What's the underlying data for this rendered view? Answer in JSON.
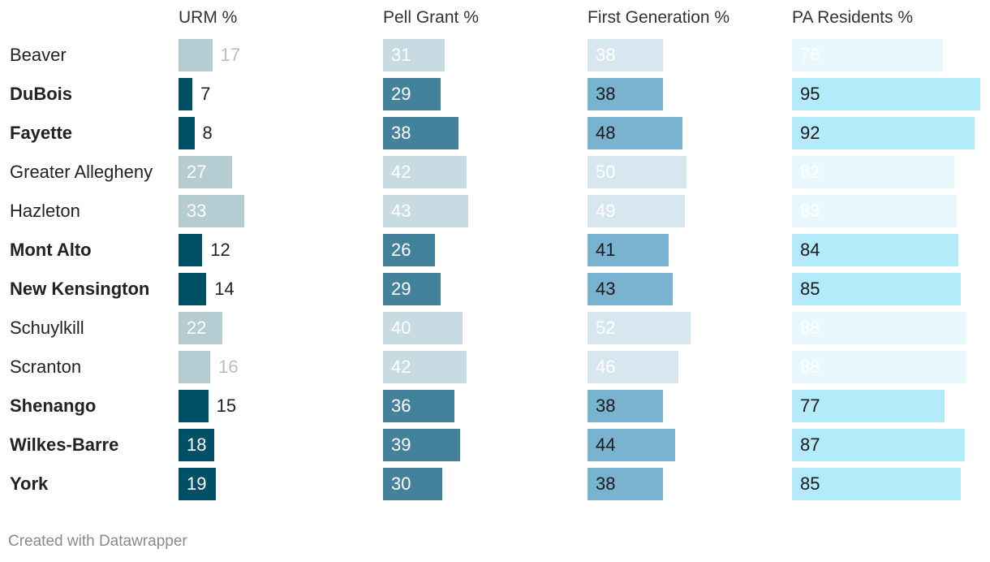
{
  "chart_data": {
    "type": "bar",
    "categories": [
      "Beaver",
      "DuBois",
      "Fayette",
      "Greater Allegheny",
      "Hazleton",
      "Mont Alto",
      "New Kensington",
      "Schuylkill",
      "Scranton",
      "Shenango",
      "Wilkes-Barre",
      "York"
    ],
    "highlighted": [
      "DuBois",
      "Fayette",
      "Mont Alto",
      "New Kensington",
      "Shenango",
      "Wilkes-Barre",
      "York"
    ],
    "series": [
      {
        "name": "URM %",
        "values": [
          17,
          7,
          8,
          27,
          33,
          12,
          14,
          22,
          16,
          15,
          18,
          19
        ],
        "color": "#005066",
        "muted_color": "#b5ccd3"
      },
      {
        "name": "Pell Grant %",
        "values": [
          31,
          29,
          38,
          42,
          43,
          26,
          29,
          40,
          42,
          36,
          39,
          30
        ],
        "color": "#44819b",
        "muted_color": "#c8dbe2"
      },
      {
        "name": "First Generation %",
        "values": [
          38,
          38,
          48,
          50,
          49,
          41,
          43,
          52,
          46,
          38,
          44,
          38
        ],
        "color": "#7ab3d0",
        "muted_color": "#d6e7f0"
      },
      {
        "name": "PA Residents %",
        "values": [
          76,
          95,
          92,
          82,
          83,
          84,
          85,
          88,
          88,
          77,
          87,
          85
        ],
        "color": "#b3ebfb",
        "muted_color": "#e8f8fd"
      }
    ],
    "xlim": [
      0,
      95
    ]
  },
  "footer": "Created with Datawrapper"
}
